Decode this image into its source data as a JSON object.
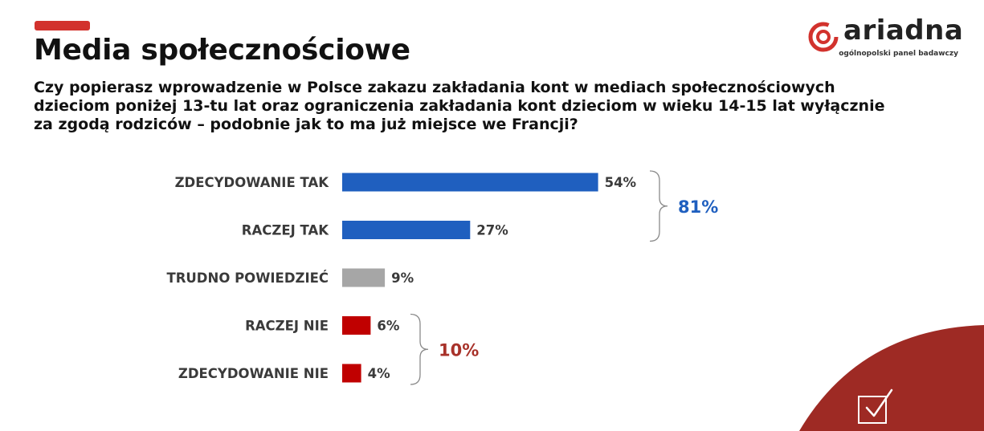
{
  "header": {
    "title": "Media społecznościowe",
    "question": "Czy popierasz wprowadzenie w Polsce zakazu zakładania kont w mediach społecznościowych dzieciom poniżej 13-tu lat oraz ograniczenia zakładania kont dzieciom w wieku 14-15 lat wyłącznie za zgodą rodziców – podobnie jak to ma już miejsce we Francji?"
  },
  "logo": {
    "name": "ariadna",
    "tagline": "ogólnopolski panel badawczy"
  },
  "colors": {
    "accent": "#d2322d",
    "yes": "#1f5fbf",
    "neutral": "#a6a6a6",
    "no": "#c00000",
    "yes_total": "#1f5fbf",
    "no_total": "#a8322a",
    "corner": "#9e2a24"
  },
  "chart_data": {
    "type": "bar",
    "orientation": "horizontal",
    "categories": [
      "ZDECYDOWANIE TAK",
      "RACZEJ TAK",
      "TRUDNO POWIEDZIEĆ",
      "RACZEJ NIE",
      "ZDECYDOWANIE NIE"
    ],
    "values": [
      54,
      27,
      9,
      6,
      4
    ],
    "value_labels": [
      "54%",
      "27%",
      "9%",
      "6%",
      "4%"
    ],
    "bar_colors": [
      "#1f5fbf",
      "#1f5fbf",
      "#a6a6a6",
      "#c00000",
      "#c00000"
    ],
    "unit": "%",
    "xlim": [
      0,
      100
    ],
    "grid": false,
    "annotations": [
      {
        "label": "81%",
        "groups": [
          0,
          1
        ],
        "color": "#1f5fbf"
      },
      {
        "label": "10%",
        "groups": [
          3,
          4
        ],
        "color": "#a8322a"
      }
    ]
  }
}
